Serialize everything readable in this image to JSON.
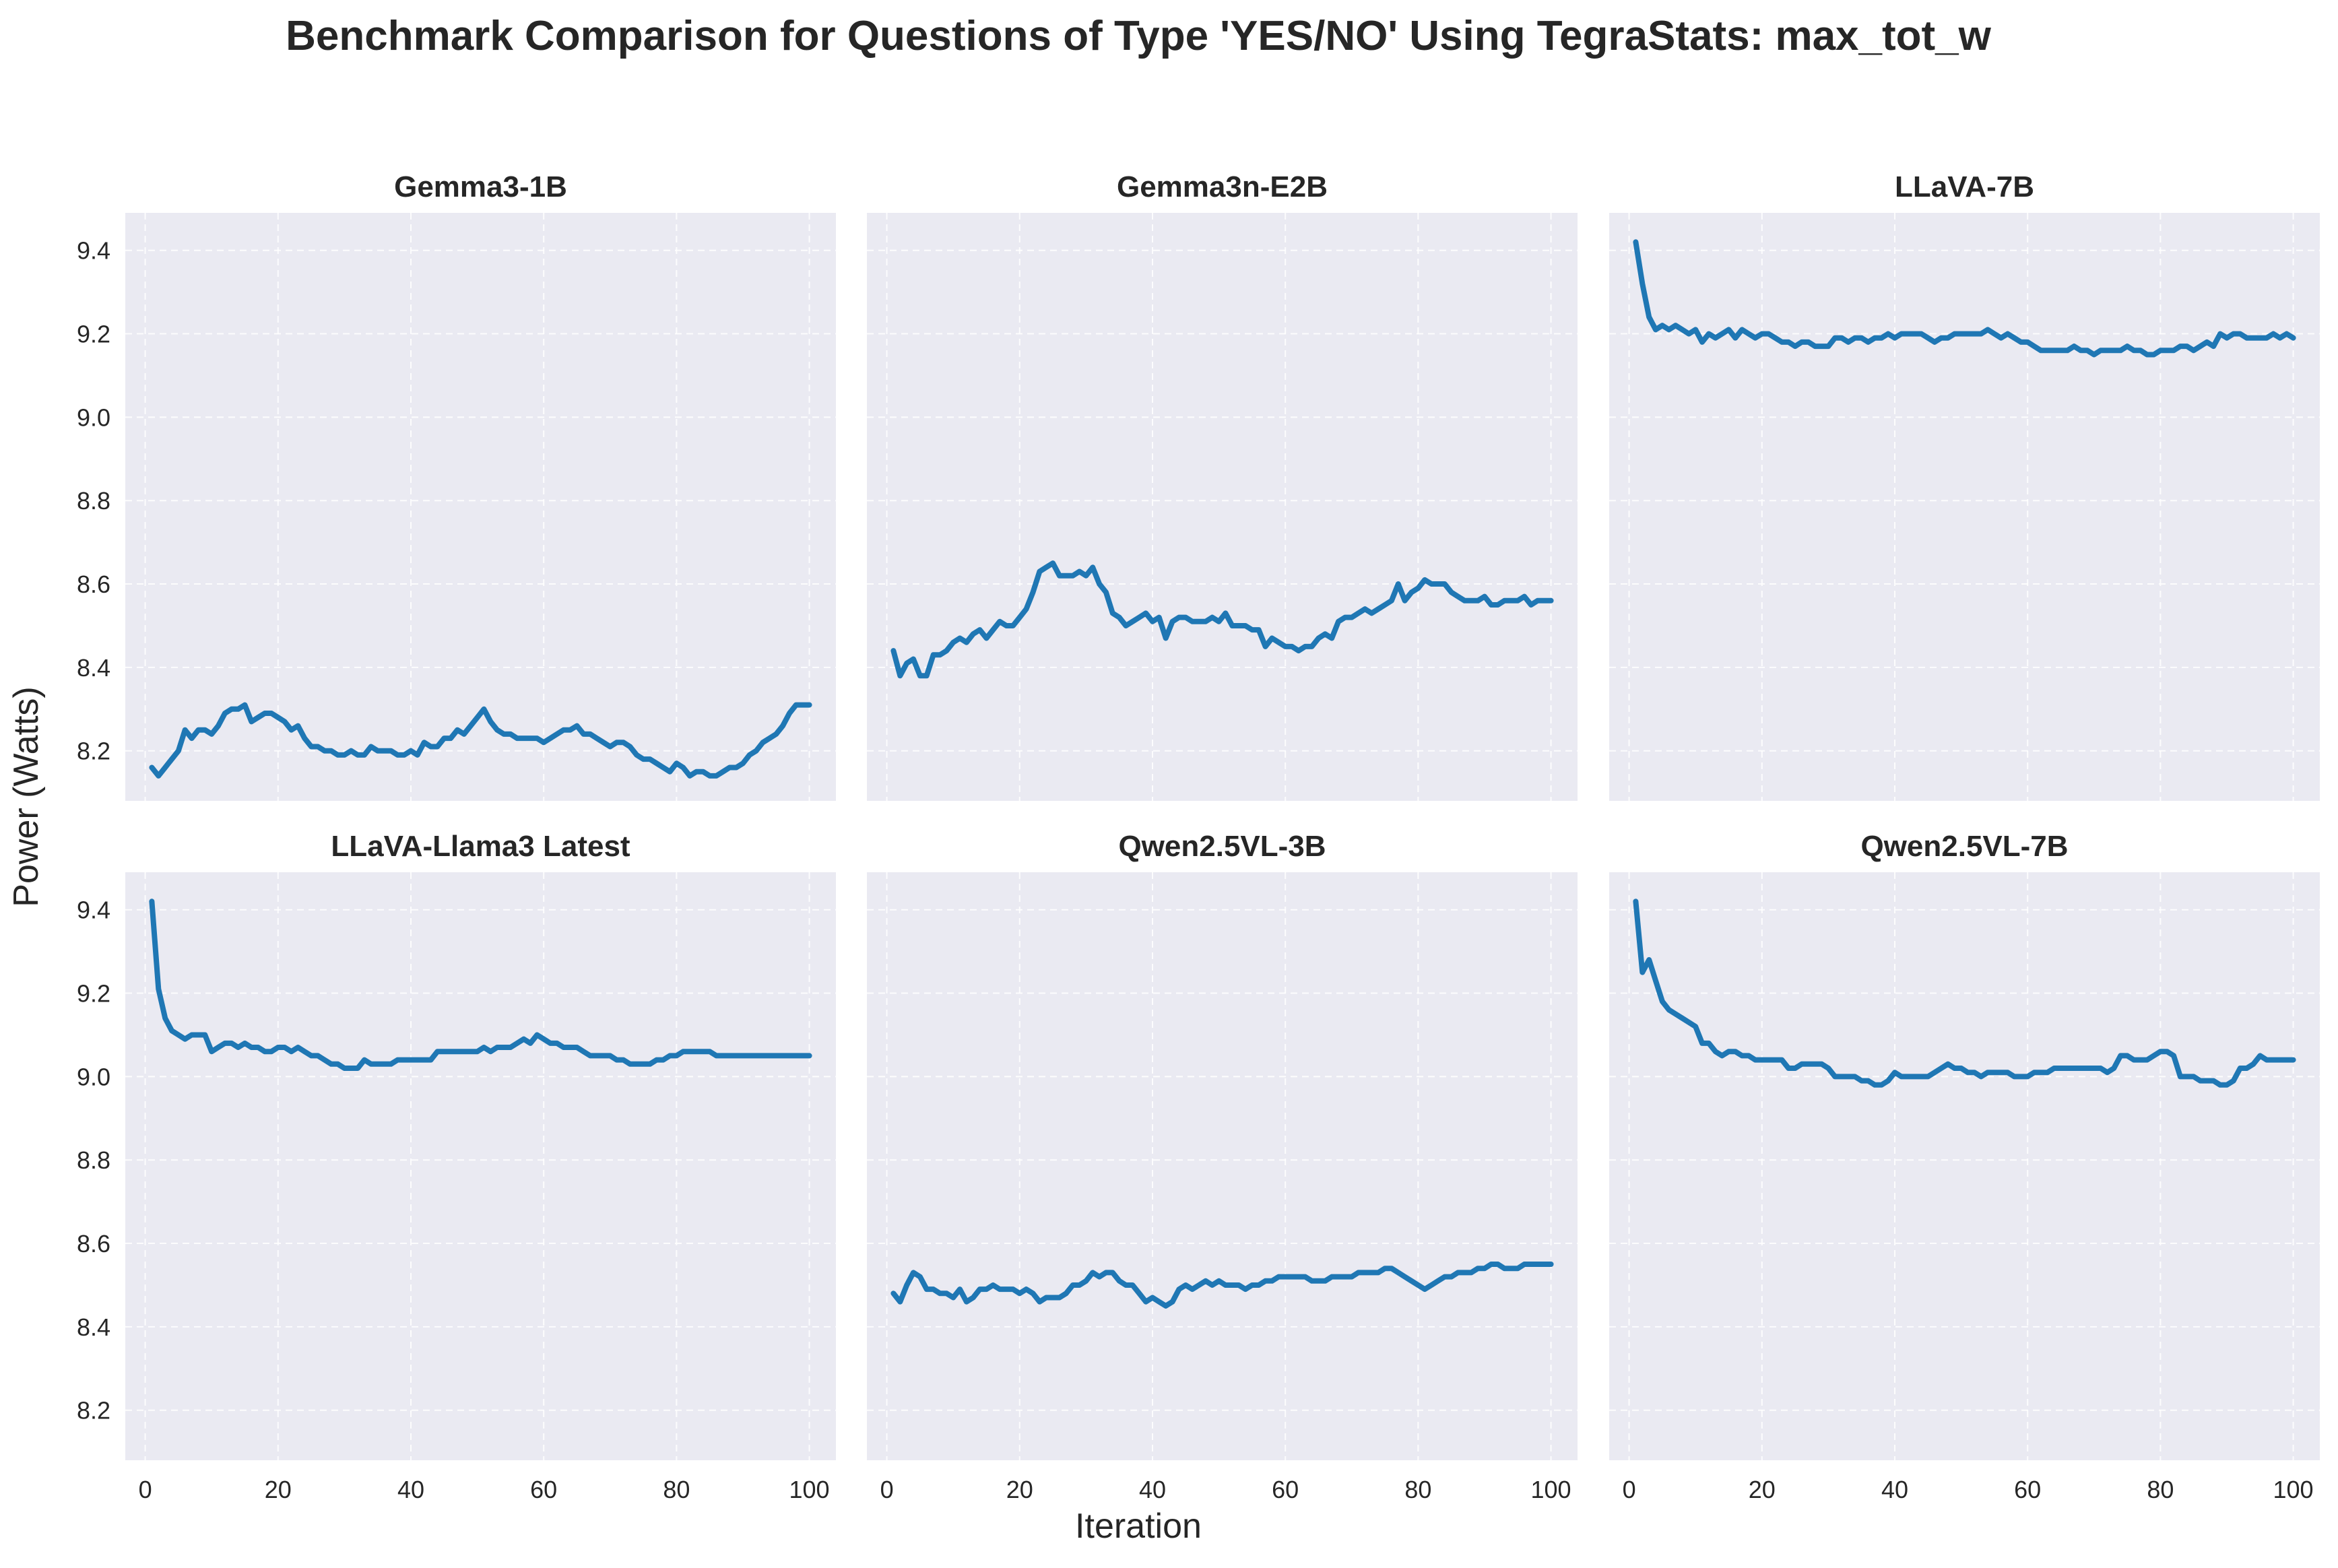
{
  "figure": {
    "title": "Benchmark Comparison for Questions of Type 'YES/NO' Using TegraStats: max_tot_w",
    "xlabel": "Iteration",
    "ylabel": "Power (Watts)"
  },
  "style": {
    "line_color": "#1f77b4",
    "panel_bg": "#eaeaf2",
    "grid_color": "#ffffff",
    "text_color": "#262626"
  },
  "chart_data": {
    "type": "line",
    "shared_axes": true,
    "grid": true,
    "xlim": [
      -3,
      104
    ],
    "ylim": [
      8.08,
      9.49
    ],
    "xticks": [
      0,
      20,
      40,
      60,
      80,
      100
    ],
    "yticks": [
      8.2,
      8.4,
      8.6,
      8.8,
      9.0,
      9.2,
      9.4
    ],
    "xtick_labels": [
      "0",
      "20",
      "40",
      "60",
      "80",
      "100"
    ],
    "ytick_labels": [
      "8.2",
      "8.4",
      "8.6",
      "8.8",
      "9.0",
      "9.2",
      "9.4"
    ],
    "panels": [
      {
        "title": "Gemma3-1B",
        "x": [
          1,
          2,
          3,
          4,
          5,
          6,
          7,
          8,
          9,
          10,
          11,
          12,
          13,
          14,
          15,
          16,
          17,
          18,
          19,
          20,
          21,
          22,
          23,
          24,
          25,
          26,
          27,
          28,
          29,
          30,
          31,
          32,
          33,
          34,
          35,
          36,
          37,
          38,
          39,
          40,
          41,
          42,
          43,
          44,
          45,
          46,
          47,
          48,
          49,
          50,
          51,
          52,
          53,
          54,
          55,
          56,
          57,
          58,
          59,
          60,
          61,
          62,
          63,
          64,
          65,
          66,
          67,
          68,
          69,
          70,
          71,
          72,
          73,
          74,
          75,
          76,
          77,
          78,
          79,
          80,
          81,
          82,
          83,
          84,
          85,
          86,
          87,
          88,
          89,
          90,
          91,
          92,
          93,
          94,
          95,
          96,
          97,
          98,
          99,
          100
        ],
        "values": [
          8.16,
          8.14,
          8.16,
          8.18,
          8.2,
          8.25,
          8.23,
          8.25,
          8.25,
          8.24,
          8.26,
          8.29,
          8.3,
          8.3,
          8.31,
          8.27,
          8.28,
          8.29,
          8.29,
          8.28,
          8.27,
          8.25,
          8.26,
          8.23,
          8.21,
          8.21,
          8.2,
          8.2,
          8.19,
          8.19,
          8.2,
          8.19,
          8.19,
          8.21,
          8.2,
          8.2,
          8.2,
          8.19,
          8.19,
          8.2,
          8.19,
          8.22,
          8.21,
          8.21,
          8.23,
          8.23,
          8.25,
          8.24,
          8.26,
          8.28,
          8.3,
          8.27,
          8.25,
          8.24,
          8.24,
          8.23,
          8.23,
          8.23,
          8.23,
          8.22,
          8.23,
          8.24,
          8.25,
          8.25,
          8.26,
          8.24,
          8.24,
          8.23,
          8.22,
          8.21,
          8.22,
          8.22,
          8.21,
          8.19,
          8.18,
          8.18,
          8.17,
          8.16,
          8.15,
          8.17,
          8.16,
          8.14,
          8.15,
          8.15,
          8.14,
          8.14,
          8.15,
          8.16,
          8.16,
          8.17,
          8.19,
          8.2,
          8.22,
          8.23,
          8.24,
          8.26,
          8.29,
          8.31,
          8.31,
          8.31
        ]
      },
      {
        "title": "Gemma3n-E2B",
        "x": [
          1,
          2,
          3,
          4,
          5,
          6,
          7,
          8,
          9,
          10,
          11,
          12,
          13,
          14,
          15,
          16,
          17,
          18,
          19,
          20,
          21,
          22,
          23,
          24,
          25,
          26,
          27,
          28,
          29,
          30,
          31,
          32,
          33,
          34,
          35,
          36,
          37,
          38,
          39,
          40,
          41,
          42,
          43,
          44,
          45,
          46,
          47,
          48,
          49,
          50,
          51,
          52,
          53,
          54,
          55,
          56,
          57,
          58,
          59,
          60,
          61,
          62,
          63,
          64,
          65,
          66,
          67,
          68,
          69,
          70,
          71,
          72,
          73,
          74,
          75,
          76,
          77,
          78,
          79,
          80,
          81,
          82,
          83,
          84,
          85,
          86,
          87,
          88,
          89,
          90,
          91,
          92,
          93,
          94,
          95,
          96,
          97,
          98,
          99,
          100
        ],
        "values": [
          8.44,
          8.38,
          8.41,
          8.42,
          8.38,
          8.38,
          8.43,
          8.43,
          8.44,
          8.46,
          8.47,
          8.46,
          8.48,
          8.49,
          8.47,
          8.49,
          8.51,
          8.5,
          8.5,
          8.52,
          8.54,
          8.58,
          8.63,
          8.64,
          8.65,
          8.62,
          8.62,
          8.62,
          8.63,
          8.62,
          8.64,
          8.6,
          8.58,
          8.53,
          8.52,
          8.5,
          8.51,
          8.52,
          8.53,
          8.51,
          8.52,
          8.47,
          8.51,
          8.52,
          8.52,
          8.51,
          8.51,
          8.51,
          8.52,
          8.51,
          8.53,
          8.5,
          8.5,
          8.5,
          8.49,
          8.49,
          8.45,
          8.47,
          8.46,
          8.45,
          8.45,
          8.44,
          8.45,
          8.45,
          8.47,
          8.48,
          8.47,
          8.51,
          8.52,
          8.52,
          8.53,
          8.54,
          8.53,
          8.54,
          8.55,
          8.56,
          8.6,
          8.56,
          8.58,
          8.59,
          8.61,
          8.6,
          8.6,
          8.6,
          8.58,
          8.57,
          8.56,
          8.56,
          8.56,
          8.57,
          8.55,
          8.55,
          8.56,
          8.56,
          8.56,
          8.57,
          8.55,
          8.56,
          8.56,
          8.56
        ]
      },
      {
        "title": "LLaVA-7B",
        "x": [
          1,
          2,
          3,
          4,
          5,
          6,
          7,
          8,
          9,
          10,
          11,
          12,
          13,
          14,
          15,
          16,
          17,
          18,
          19,
          20,
          21,
          22,
          23,
          24,
          25,
          26,
          27,
          28,
          29,
          30,
          31,
          32,
          33,
          34,
          35,
          36,
          37,
          38,
          39,
          40,
          41,
          42,
          43,
          44,
          45,
          46,
          47,
          48,
          49,
          50,
          51,
          52,
          53,
          54,
          55,
          56,
          57,
          58,
          59,
          60,
          61,
          62,
          63,
          64,
          65,
          66,
          67,
          68,
          69,
          70,
          71,
          72,
          73,
          74,
          75,
          76,
          77,
          78,
          79,
          80,
          81,
          82,
          83,
          84,
          85,
          86,
          87,
          88,
          89,
          90,
          91,
          92,
          93,
          94,
          95,
          96,
          97,
          98,
          99,
          100
        ],
        "values": [
          9.42,
          9.32,
          9.24,
          9.21,
          9.22,
          9.21,
          9.22,
          9.21,
          9.2,
          9.21,
          9.18,
          9.2,
          9.19,
          9.2,
          9.21,
          9.19,
          9.21,
          9.2,
          9.19,
          9.2,
          9.2,
          9.19,
          9.18,
          9.18,
          9.17,
          9.18,
          9.18,
          9.17,
          9.17,
          9.17,
          9.19,
          9.19,
          9.18,
          9.19,
          9.19,
          9.18,
          9.19,
          9.19,
          9.2,
          9.19,
          9.2,
          9.2,
          9.2,
          9.2,
          9.19,
          9.18,
          9.19,
          9.19,
          9.2,
          9.2,
          9.2,
          9.2,
          9.2,
          9.21,
          9.2,
          9.19,
          9.2,
          9.19,
          9.18,
          9.18,
          9.17,
          9.16,
          9.16,
          9.16,
          9.16,
          9.16,
          9.17,
          9.16,
          9.16,
          9.15,
          9.16,
          9.16,
          9.16,
          9.16,
          9.17,
          9.16,
          9.16,
          9.15,
          9.15,
          9.16,
          9.16,
          9.16,
          9.17,
          9.17,
          9.16,
          9.17,
          9.18,
          9.17,
          9.2,
          9.19,
          9.2,
          9.2,
          9.19,
          9.19,
          9.19,
          9.19,
          9.2,
          9.19,
          9.2,
          9.19
        ]
      },
      {
        "title": "LLaVA-Llama3 Latest",
        "x": [
          1,
          2,
          3,
          4,
          5,
          6,
          7,
          8,
          9,
          10,
          11,
          12,
          13,
          14,
          15,
          16,
          17,
          18,
          19,
          20,
          21,
          22,
          23,
          24,
          25,
          26,
          27,
          28,
          29,
          30,
          31,
          32,
          33,
          34,
          35,
          36,
          37,
          38,
          39,
          40,
          41,
          42,
          43,
          44,
          45,
          46,
          47,
          48,
          49,
          50,
          51,
          52,
          53,
          54,
          55,
          56,
          57,
          58,
          59,
          60,
          61,
          62,
          63,
          64,
          65,
          66,
          67,
          68,
          69,
          70,
          71,
          72,
          73,
          74,
          75,
          76,
          77,
          78,
          79,
          80,
          81,
          82,
          83,
          84,
          85,
          86,
          87,
          88,
          89,
          90,
          91,
          92,
          93,
          94,
          95,
          96,
          97,
          98,
          99,
          100
        ],
        "values": [
          9.42,
          9.21,
          9.14,
          9.11,
          9.1,
          9.09,
          9.1,
          9.1,
          9.1,
          9.06,
          9.07,
          9.08,
          9.08,
          9.07,
          9.08,
          9.07,
          9.07,
          9.06,
          9.06,
          9.07,
          9.07,
          9.06,
          9.07,
          9.06,
          9.05,
          9.05,
          9.04,
          9.03,
          9.03,
          9.02,
          9.02,
          9.02,
          9.04,
          9.03,
          9.03,
          9.03,
          9.03,
          9.04,
          9.04,
          9.04,
          9.04,
          9.04,
          9.04,
          9.06,
          9.06,
          9.06,
          9.06,
          9.06,
          9.06,
          9.06,
          9.07,
          9.06,
          9.07,
          9.07,
          9.07,
          9.08,
          9.09,
          9.08,
          9.1,
          9.09,
          9.08,
          9.08,
          9.07,
          9.07,
          9.07,
          9.06,
          9.05,
          9.05,
          9.05,
          9.05,
          9.04,
          9.04,
          9.03,
          9.03,
          9.03,
          9.03,
          9.04,
          9.04,
          9.05,
          9.05,
          9.06,
          9.06,
          9.06,
          9.06,
          9.06,
          9.05,
          9.05,
          9.05,
          9.05,
          9.05,
          9.05,
          9.05,
          9.05,
          9.05,
          9.05,
          9.05,
          9.05,
          9.05,
          9.05,
          9.05
        ]
      },
      {
        "title": "Qwen2.5VL-3B",
        "x": [
          1,
          2,
          3,
          4,
          5,
          6,
          7,
          8,
          9,
          10,
          11,
          12,
          13,
          14,
          15,
          16,
          17,
          18,
          19,
          20,
          21,
          22,
          23,
          24,
          25,
          26,
          27,
          28,
          29,
          30,
          31,
          32,
          33,
          34,
          35,
          36,
          37,
          38,
          39,
          40,
          41,
          42,
          43,
          44,
          45,
          46,
          47,
          48,
          49,
          50,
          51,
          52,
          53,
          54,
          55,
          56,
          57,
          58,
          59,
          60,
          61,
          62,
          63,
          64,
          65,
          66,
          67,
          68,
          69,
          70,
          71,
          72,
          73,
          74,
          75,
          76,
          77,
          78,
          79,
          80,
          81,
          82,
          83,
          84,
          85,
          86,
          87,
          88,
          89,
          90,
          91,
          92,
          93,
          94,
          95,
          96,
          97,
          98,
          99,
          100
        ],
        "values": [
          8.48,
          8.46,
          8.5,
          8.53,
          8.52,
          8.49,
          8.49,
          8.48,
          8.48,
          8.47,
          8.49,
          8.46,
          8.47,
          8.49,
          8.49,
          8.5,
          8.49,
          8.49,
          8.49,
          8.48,
          8.49,
          8.48,
          8.46,
          8.47,
          8.47,
          8.47,
          8.48,
          8.5,
          8.5,
          8.51,
          8.53,
          8.52,
          8.53,
          8.53,
          8.51,
          8.5,
          8.5,
          8.48,
          8.46,
          8.47,
          8.46,
          8.45,
          8.46,
          8.49,
          8.5,
          8.49,
          8.5,
          8.51,
          8.5,
          8.51,
          8.5,
          8.5,
          8.5,
          8.49,
          8.5,
          8.5,
          8.51,
          8.51,
          8.52,
          8.52,
          8.52,
          8.52,
          8.52,
          8.51,
          8.51,
          8.51,
          8.52,
          8.52,
          8.52,
          8.52,
          8.53,
          8.53,
          8.53,
          8.53,
          8.54,
          8.54,
          8.53,
          8.52,
          8.51,
          8.5,
          8.49,
          8.5,
          8.51,
          8.52,
          8.52,
          8.53,
          8.53,
          8.53,
          8.54,
          8.54,
          8.55,
          8.55,
          8.54,
          8.54,
          8.54,
          8.55,
          8.55,
          8.55,
          8.55,
          8.55
        ]
      },
      {
        "title": "Qwen2.5VL-7B",
        "x": [
          1,
          2,
          3,
          4,
          5,
          6,
          7,
          8,
          9,
          10,
          11,
          12,
          13,
          14,
          15,
          16,
          17,
          18,
          19,
          20,
          21,
          22,
          23,
          24,
          25,
          26,
          27,
          28,
          29,
          30,
          31,
          32,
          33,
          34,
          35,
          36,
          37,
          38,
          39,
          40,
          41,
          42,
          43,
          44,
          45,
          46,
          47,
          48,
          49,
          50,
          51,
          52,
          53,
          54,
          55,
          56,
          57,
          58,
          59,
          60,
          61,
          62,
          63,
          64,
          65,
          66,
          67,
          68,
          69,
          70,
          71,
          72,
          73,
          74,
          75,
          76,
          77,
          78,
          79,
          80,
          81,
          82,
          83,
          84,
          85,
          86,
          87,
          88,
          89,
          90,
          91,
          92,
          93,
          94,
          95,
          96,
          97,
          98,
          99,
          100
        ],
        "values": [
          9.42,
          9.25,
          9.28,
          9.23,
          9.18,
          9.16,
          9.15,
          9.14,
          9.13,
          9.12,
          9.08,
          9.08,
          9.06,
          9.05,
          9.06,
          9.06,
          9.05,
          9.05,
          9.04,
          9.04,
          9.04,
          9.04,
          9.04,
          9.02,
          9.02,
          9.03,
          9.03,
          9.03,
          9.03,
          9.02,
          9.0,
          9.0,
          9.0,
          9.0,
          8.99,
          8.99,
          8.98,
          8.98,
          8.99,
          9.01,
          9.0,
          9.0,
          9.0,
          9.0,
          9.0,
          9.01,
          9.02,
          9.03,
          9.02,
          9.02,
          9.01,
          9.01,
          9.0,
          9.01,
          9.01,
          9.01,
          9.01,
          9.0,
          9.0,
          9.0,
          9.01,
          9.01,
          9.01,
          9.02,
          9.02,
          9.02,
          9.02,
          9.02,
          9.02,
          9.02,
          9.02,
          9.01,
          9.02,
          9.05,
          9.05,
          9.04,
          9.04,
          9.04,
          9.05,
          9.06,
          9.06,
          9.05,
          9.0,
          9.0,
          9.0,
          8.99,
          8.99,
          8.99,
          8.98,
          8.98,
          8.99,
          9.02,
          9.02,
          9.03,
          9.05,
          9.04,
          9.04,
          9.04,
          9.04,
          9.04
        ]
      }
    ]
  }
}
